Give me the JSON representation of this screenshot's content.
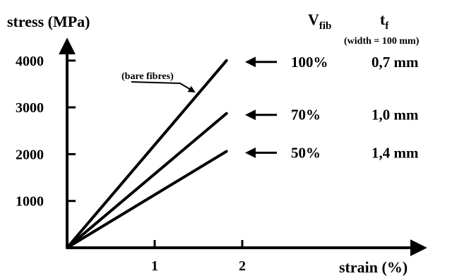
{
  "chart_data": {
    "type": "line",
    "ylabel": "stress (MPa)",
    "xlabel": "strain (%)",
    "xlim": [
      0,
      4
    ],
    "ylim": [
      0,
      4600
    ],
    "x_ticks": [
      "1",
      "2"
    ],
    "y_ticks": [
      "4000",
      "3000",
      "2000",
      "1000"
    ],
    "annotation": "(bare fibres)",
    "table_headers": {
      "vfib_main": "V",
      "vfib_sub": "fib",
      "tf_main": "t",
      "tf_sub": "f",
      "tf_note": "(width = 100 mm)"
    },
    "series": [
      {
        "x": [
          0,
          1.82
        ],
        "y": [
          0,
          4000
        ],
        "vfib": "100%",
        "tf": "0,7 mm"
      },
      {
        "x": [
          0,
          1.82
        ],
        "y": [
          0,
          2870
        ],
        "vfib": "70%",
        "tf": "1,0 mm"
      },
      {
        "x": [
          0,
          1.82
        ],
        "y": [
          0,
          2060
        ],
        "vfib": "50%",
        "tf": "1,4 mm"
      }
    ]
  }
}
